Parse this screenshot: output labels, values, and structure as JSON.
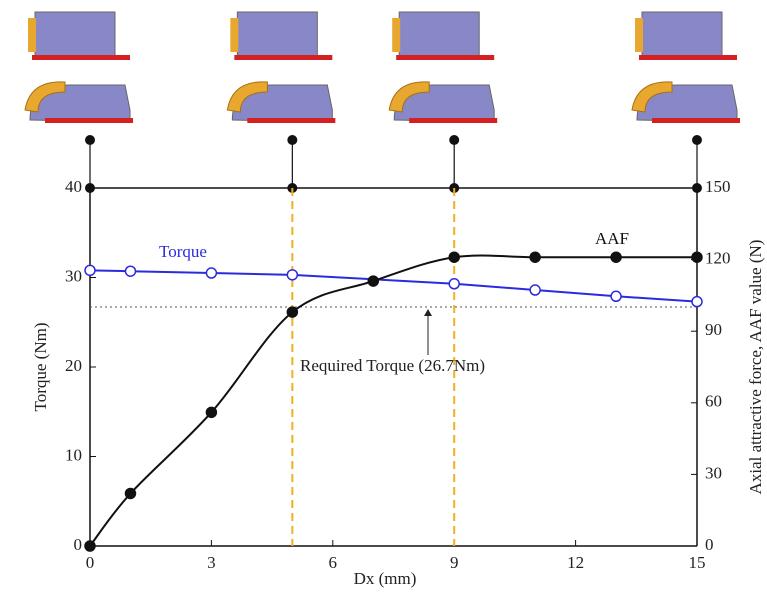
{
  "chart_data": {
    "type": "line",
    "x_label": "Dx (mm)",
    "y_label": "Torque (Nm)",
    "y2_label": "Axial attractive force, AAF value (N)",
    "xlim": [
      0,
      15
    ],
    "xticks": [
      0,
      3,
      6,
      9,
      12,
      15
    ],
    "ylim": [
      0,
      40
    ],
    "yticks": [
      0,
      10,
      20,
      30,
      40
    ],
    "y2lim": [
      0,
      150
    ],
    "y2ticks": [
      0,
      30,
      60,
      90,
      120,
      150
    ],
    "series": [
      {
        "name": "Torque",
        "color": "#2b2bdd",
        "x": [
          0,
          1,
          3,
          5,
          9,
          11,
          13,
          15
        ],
        "values": [
          30.8,
          30.7,
          30.5,
          30.3,
          29.3,
          28.6,
          27.9,
          27.3
        ]
      },
      {
        "name": "AAF",
        "color": "#111111",
        "axis": "y2",
        "x": [
          0,
          1,
          3,
          5,
          7,
          9,
          11,
          13,
          15
        ],
        "values": [
          0,
          22,
          56,
          98,
          111,
          121,
          121,
          121,
          121
        ]
      }
    ],
    "reference_line": {
      "value": 26.7,
      "label": "Required Torque (26.7Nm)"
    },
    "dashed_x": [
      5,
      9
    ],
    "stage_x": [
      0,
      5,
      9,
      15
    ]
  }
}
